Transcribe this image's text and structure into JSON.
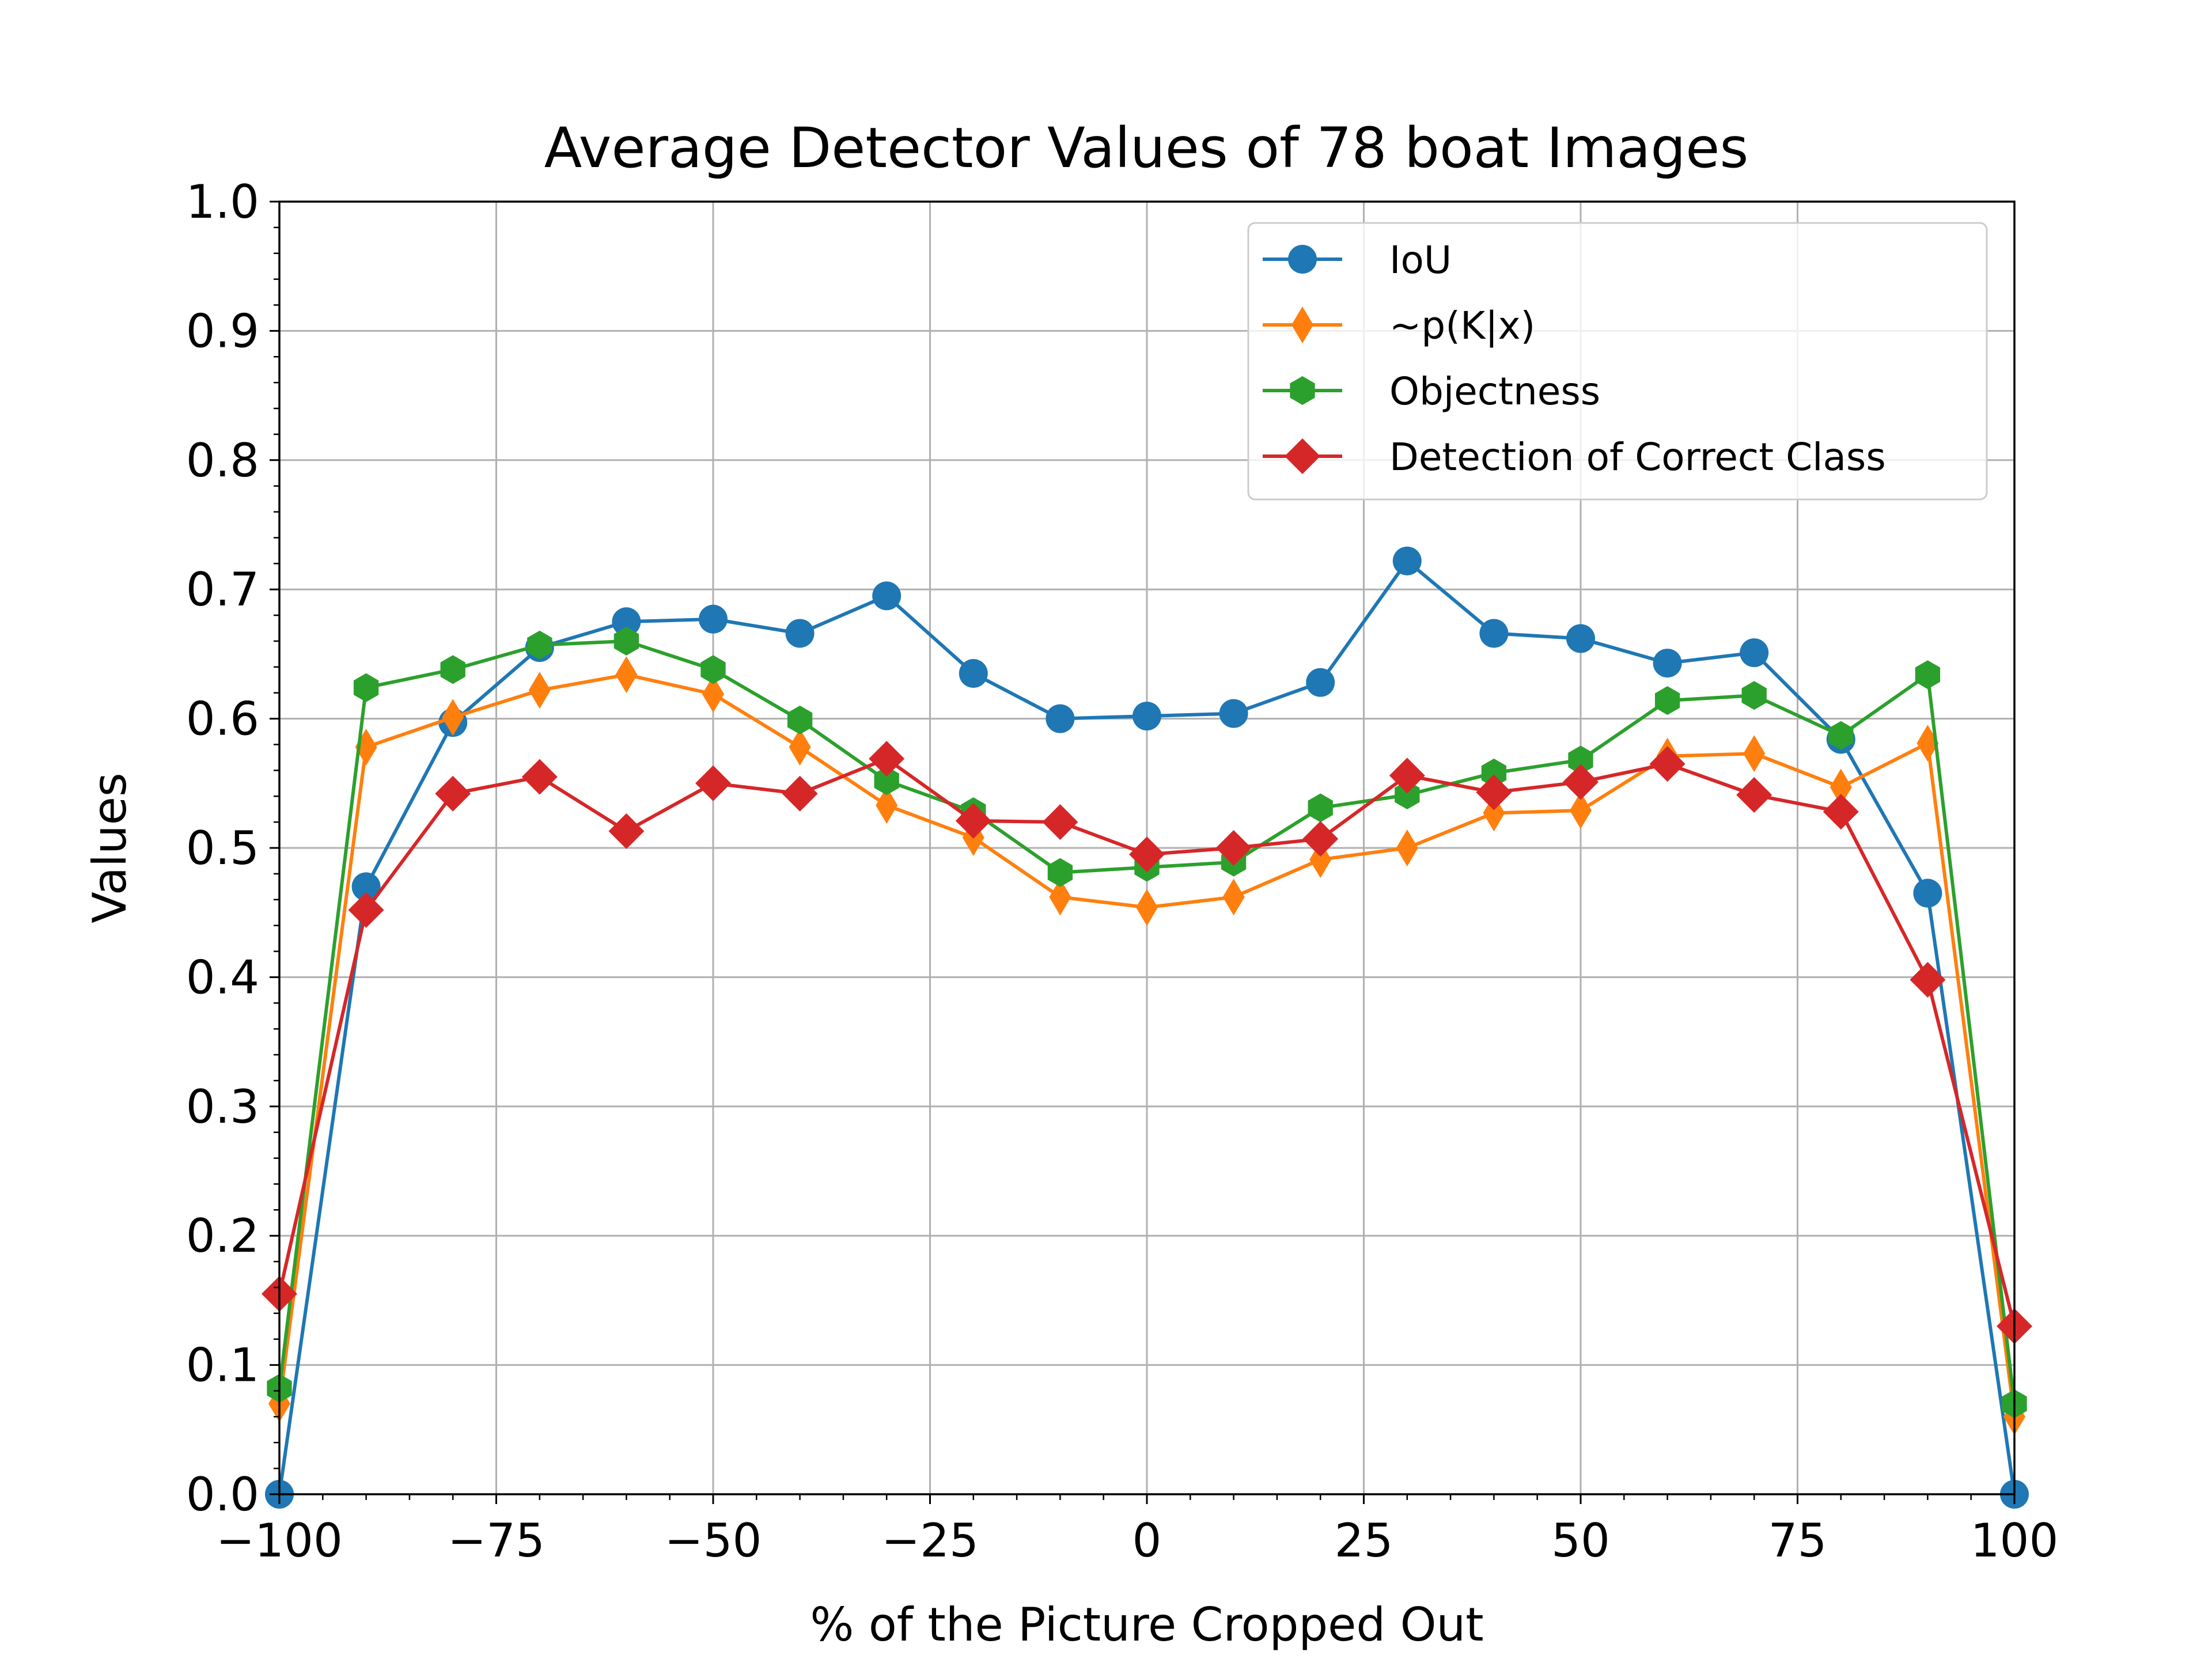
{
  "chart_data": {
    "type": "line",
    "title": "Average Detector Values of 78 boat Images",
    "xlabel": "% of the Picture Cropped Out",
    "ylabel": "Values",
    "xlim": [
      -100,
      100
    ],
    "ylim": [
      0.0,
      1.0
    ],
    "xticks": [
      -100,
      -75,
      -50,
      -25,
      0,
      25,
      50,
      75,
      100
    ],
    "xtick_labels": [
      "−100",
      "−75",
      "−50",
      "−25",
      "0",
      "25",
      "50",
      "75",
      "100"
    ],
    "yticks": [
      0.0,
      0.1,
      0.2,
      0.3,
      0.4,
      0.5,
      0.6,
      0.7,
      0.8,
      0.9,
      1.0
    ],
    "ytick_labels": [
      "0.0",
      "0.1",
      "0.2",
      "0.3",
      "0.4",
      "0.5",
      "0.6",
      "0.7",
      "0.8",
      "0.9",
      "1.0"
    ],
    "grid": true,
    "legend_position": "top-right",
    "x": [
      -100,
      -90,
      -80,
      -70,
      -60,
      -50,
      -40,
      -30,
      -20,
      -10,
      0,
      10,
      20,
      30,
      40,
      50,
      60,
      70,
      80,
      90,
      100
    ],
    "series": [
      {
        "name": "IoU",
        "color": "#1f77b4",
        "marker": "circle",
        "values": [
          0.0,
          0.47,
          0.597,
          0.655,
          0.675,
          0.677,
          0.666,
          0.695,
          0.635,
          0.6,
          0.602,
          0.604,
          0.628,
          0.722,
          0.666,
          0.662,
          0.643,
          0.651,
          0.584,
          0.465,
          0.0
        ]
      },
      {
        "name": "~p(K|x)",
        "color": "#ff7f0e",
        "marker": "thin_diamond",
        "values": [
          0.07,
          0.578,
          0.601,
          0.622,
          0.634,
          0.619,
          0.578,
          0.533,
          0.508,
          0.462,
          0.454,
          0.462,
          0.491,
          0.5,
          0.527,
          0.529,
          0.571,
          0.573,
          0.547,
          0.581,
          0.06
        ]
      },
      {
        "name": "Objectness",
        "color": "#2ca02c",
        "marker": "hexagon",
        "values": [
          0.082,
          0.624,
          0.638,
          0.657,
          0.66,
          0.638,
          0.599,
          0.552,
          0.528,
          0.481,
          0.485,
          0.489,
          0.531,
          0.541,
          0.558,
          0.568,
          0.614,
          0.618,
          0.587,
          0.634,
          0.07
        ]
      },
      {
        "name": "Detection of Correct Class",
        "color": "#d62728",
        "marker": "diamond",
        "values": [
          0.155,
          0.452,
          0.542,
          0.555,
          0.513,
          0.55,
          0.542,
          0.569,
          0.521,
          0.52,
          0.495,
          0.5,
          0.507,
          0.556,
          0.543,
          0.551,
          0.565,
          0.541,
          0.528,
          0.398,
          0.13
        ]
      }
    ]
  }
}
